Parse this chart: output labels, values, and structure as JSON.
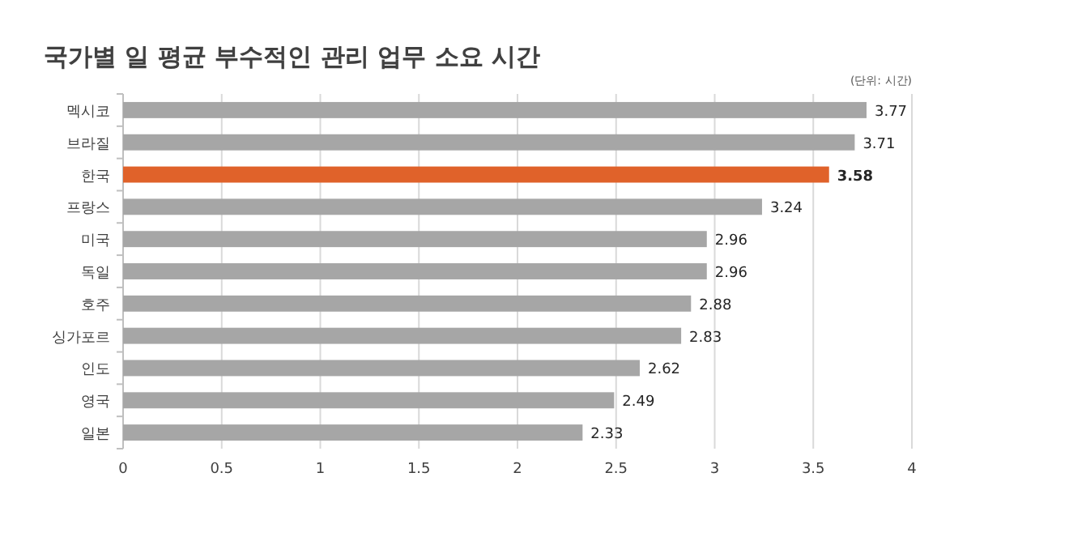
{
  "chart_data": {
    "type": "bar",
    "orientation": "horizontal",
    "title": "국가별 일 평균 부수적인 관리 업무 소요 시간",
    "annotations": [
      "(단위: 시간)"
    ],
    "categories": [
      "멕시코",
      "브라질",
      "한국",
      "프랑스",
      "미국",
      "독일",
      "호주",
      "싱가포르",
      "인도",
      "영국",
      "일본"
    ],
    "values": [
      3.77,
      3.71,
      3.58,
      3.24,
      2.96,
      2.96,
      2.88,
      2.83,
      2.62,
      2.49,
      2.33
    ],
    "colors": [
      "#a6a6a6",
      "#a6a6a6",
      "#e0622a",
      "#a6a6a6",
      "#a6a6a6",
      "#a6a6a6",
      "#a6a6a6",
      "#a6a6a6",
      "#a6a6a6",
      "#a6a6a6",
      "#a6a6a6"
    ],
    "xlim": [
      0,
      4
    ],
    "xticks": [
      0,
      0.5,
      1,
      1.5,
      2,
      2.5,
      3,
      3.5,
      4
    ],
    "grid": "x",
    "data_labels": true
  }
}
